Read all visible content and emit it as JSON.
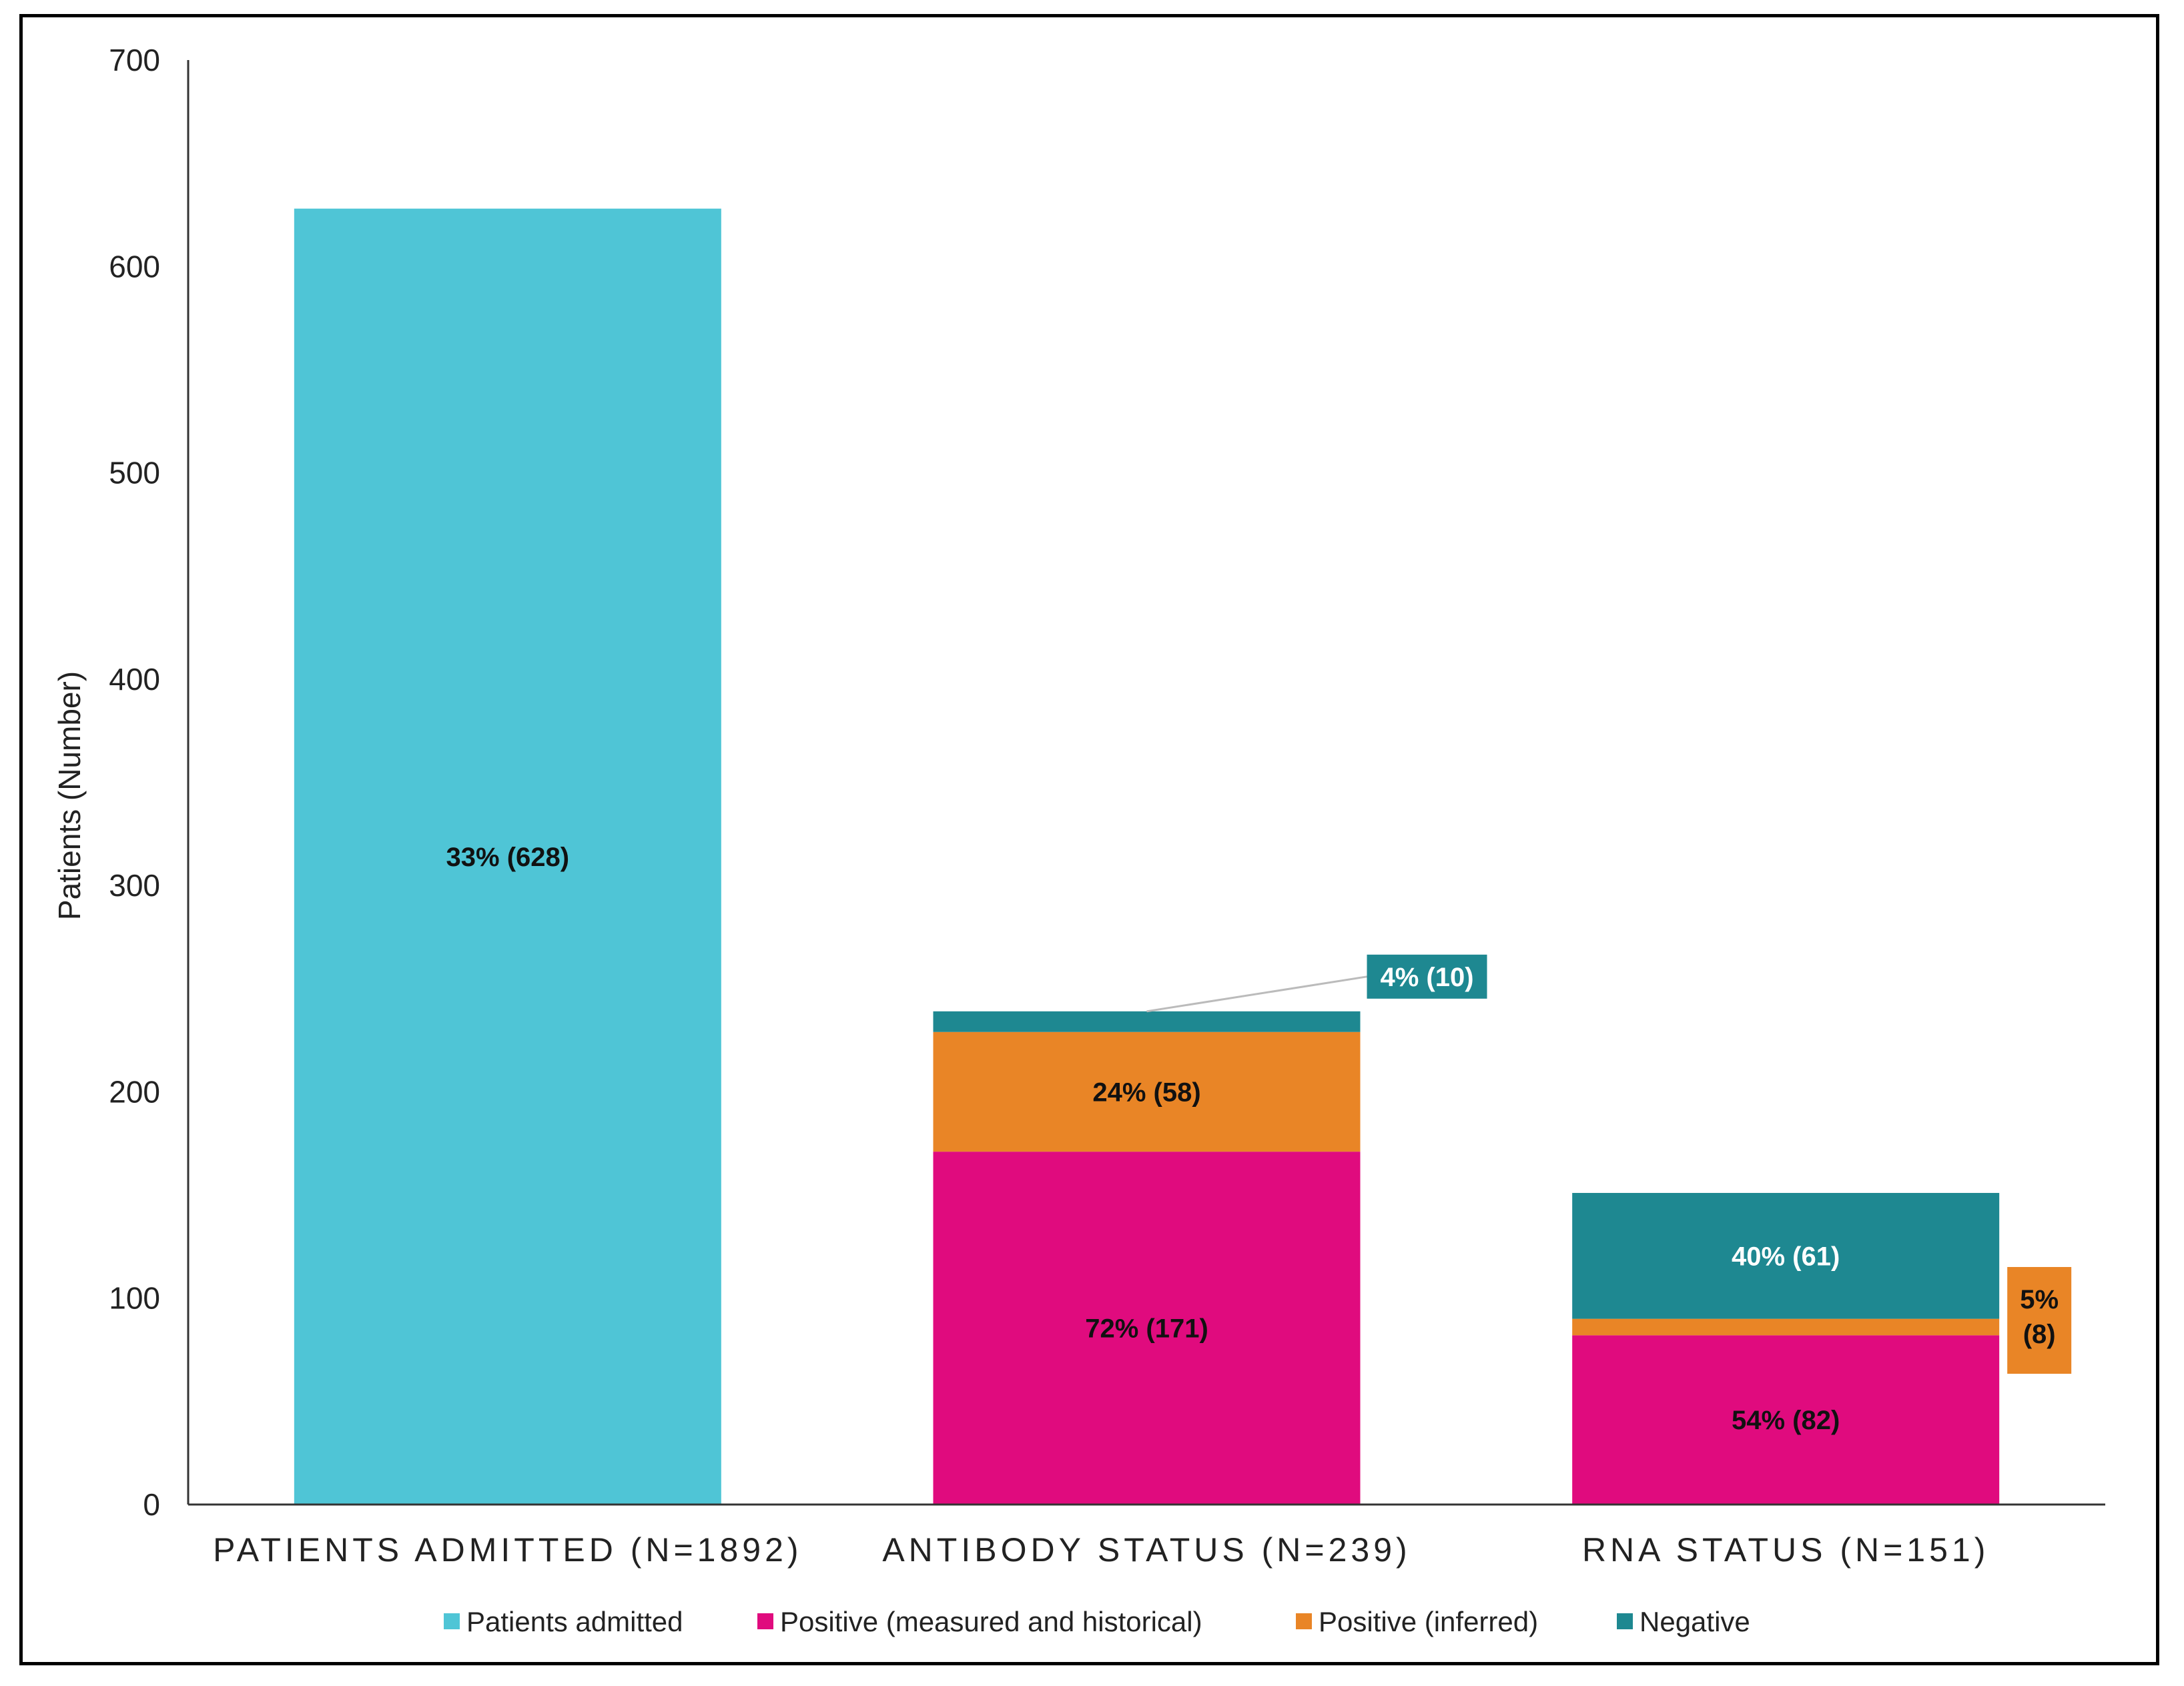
{
  "chart_data": {
    "type": "bar",
    "stacked": true,
    "categories": [
      "PATIENTS ADMITTED (N=1892)",
      "ANTIBODY STATUS (N=239)",
      "RNA STATUS (N=151)"
    ],
    "series": [
      {
        "name": "Patients admitted",
        "color": "#4fc5d6",
        "values": [
          628,
          0,
          0
        ],
        "labels": [
          "33% (628)",
          "",
          ""
        ]
      },
      {
        "name": "Positive (measured and historical)",
        "color": "#e00b7e",
        "values": [
          0,
          171,
          82
        ],
        "labels": [
          "",
          "72% (171)",
          "54% (82)"
        ]
      },
      {
        "name": "Positive (inferred)",
        "color": "#e98526",
        "values": [
          0,
          58,
          8
        ],
        "labels": [
          "",
          "24% (58)",
          "5%\n(8)"
        ]
      },
      {
        "name": "Negative",
        "color": "#1e8891",
        "values": [
          0,
          10,
          61
        ],
        "labels": [
          "",
          "4% (10)",
          "40% (61)"
        ]
      }
    ],
    "ylabel": "Patients (Number)",
    "xlabel": "",
    "ylim": [
      0,
      700
    ],
    "yticks": [
      0,
      100,
      200,
      300,
      400,
      500,
      600,
      700
    ],
    "grid": false,
    "legend_position": "bottom"
  }
}
